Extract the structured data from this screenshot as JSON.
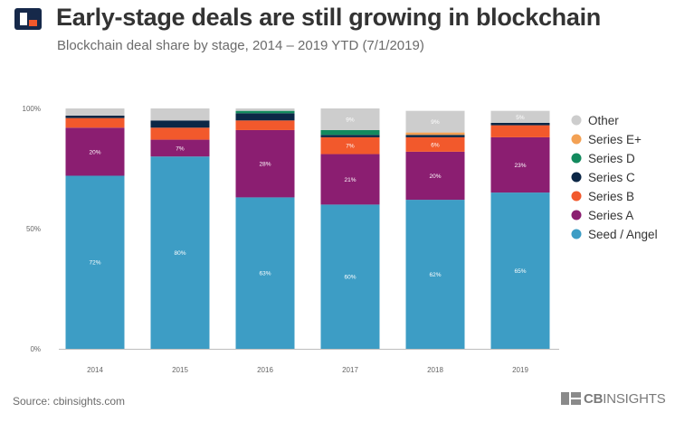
{
  "header": {
    "title": "Early-stage deals are still growing in blockchain",
    "subtitle": "Blockchain deal share by stage, 2014 – 2019 YTD (7/1/2019)",
    "logo_icon": "cb-insights-logo-icon"
  },
  "footer": {
    "source": "Source: cbinsights.com",
    "brand_bold": "CB",
    "brand_light": "INSIGHTS"
  },
  "colors": {
    "Seed / Angel": "#3d9dc5",
    "Series A": "#8b1e71",
    "Series B": "#f2592c",
    "Series C": "#0c2746",
    "Series D": "#138a5e",
    "Series E+": "#f3a154",
    "Other": "#cdcdcd",
    "logo_navy": "#16294a",
    "logo_orange": "#f2592c"
  },
  "chart_data": {
    "type": "bar",
    "stacked": true,
    "categories": [
      "2014",
      "2015",
      "2016",
      "2017",
      "2018",
      "2019"
    ],
    "y_ticks": [
      "0%",
      "50%",
      "100%"
    ],
    "ylim": [
      0,
      100
    ],
    "legend_position": "right",
    "series": [
      {
        "name": "Seed / Angel",
        "values": [
          72,
          80,
          63,
          60,
          62,
          65
        ],
        "labels": [
          "72%",
          "80%",
          "63%",
          "60%",
          "62%",
          "65%"
        ]
      },
      {
        "name": "Series A",
        "values": [
          20,
          7,
          28,
          21,
          20,
          23
        ],
        "labels": [
          "20%",
          "7%",
          "28%",
          "21%",
          "20%",
          "23%"
        ]
      },
      {
        "name": "Series B",
        "values": [
          4,
          5,
          4,
          7,
          6,
          5
        ],
        "labels": [
          "",
          "",
          "",
          "7%",
          "6%",
          ""
        ]
      },
      {
        "name": "Series C",
        "values": [
          1,
          3,
          3,
          1,
          1,
          1
        ],
        "labels": [
          "",
          "",
          "",
          "",
          "",
          ""
        ]
      },
      {
        "name": "Series D",
        "values": [
          0,
          0,
          1,
          2,
          0,
          0
        ],
        "labels": [
          "",
          "",
          "",
          "",
          "",
          ""
        ]
      },
      {
        "name": "Series E+",
        "values": [
          0,
          0,
          0,
          0,
          1,
          0
        ],
        "labels": [
          "",
          "",
          "",
          "",
          "",
          ""
        ]
      },
      {
        "name": "Other",
        "values": [
          3,
          5,
          1,
          9,
          9,
          5
        ],
        "labels": [
          "",
          "",
          "",
          "9%",
          "9%",
          "5%"
        ]
      }
    ],
    "legend_order": [
      "Other",
      "Series E+",
      "Series D",
      "Series C",
      "Series B",
      "Series A",
      "Seed / Angel"
    ]
  }
}
